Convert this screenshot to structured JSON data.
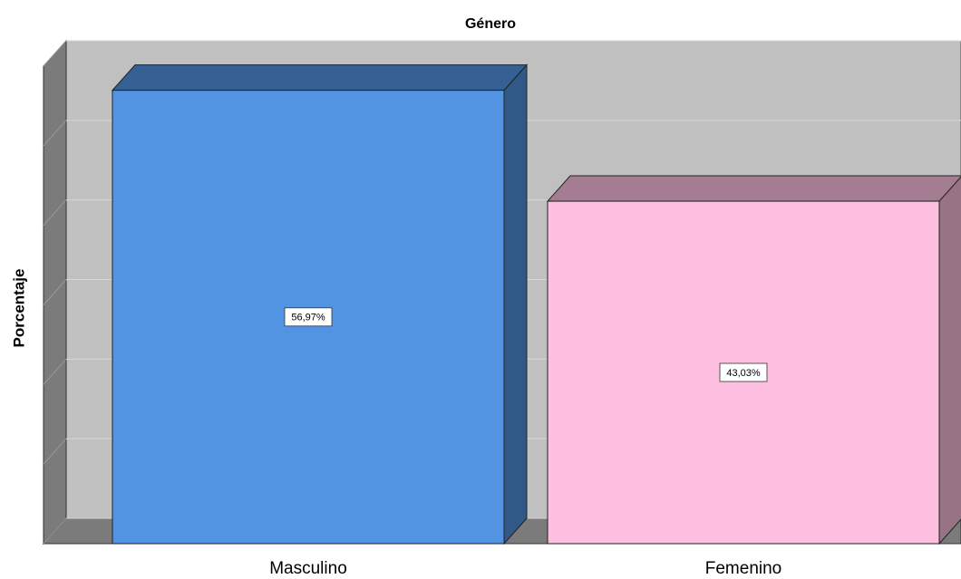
{
  "chart_data": {
    "type": "bar3d",
    "title": "Género",
    "ylabel": "Porcentaje",
    "categories": [
      "Masculino",
      "Femenino"
    ],
    "values": [
      56.97,
      43.03
    ],
    "value_labels": [
      "56,97%",
      "43,03%"
    ],
    "colors": [
      "#5294e2",
      "#fdc0e0"
    ],
    "ylim": [
      0,
      60
    ],
    "yticks": [
      0,
      10,
      20,
      30,
      40,
      50,
      60
    ],
    "grid": true
  }
}
